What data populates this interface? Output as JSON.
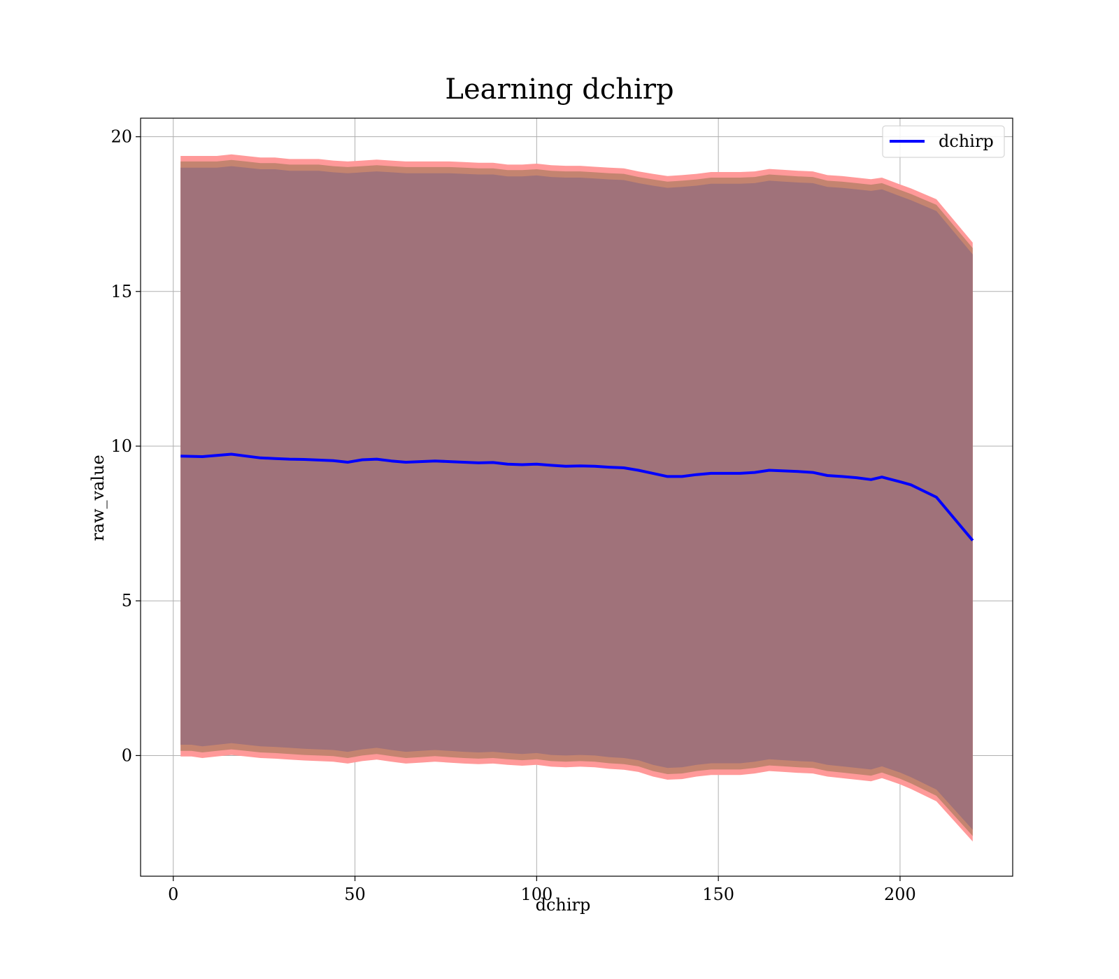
{
  "chart_data": {
    "type": "line",
    "title": "Learning dchirp",
    "xlabel": "dchirp",
    "ylabel": "raw_value",
    "xlim": [
      -9,
      231
    ],
    "ylim": [
      -3.9,
      20.6
    ],
    "xticks": [
      0,
      50,
      100,
      150,
      200
    ],
    "yticks": [
      0,
      5,
      10,
      15,
      20
    ],
    "grid": true,
    "legend": {
      "position": "upper right",
      "entries": [
        "dchirp"
      ]
    },
    "colors": {
      "line": "#0000ff",
      "band_outer": "#ff9999",
      "band_middle": "#c48470",
      "band_inner": "#a0727a",
      "grid": "#b0b0b0"
    },
    "series": [
      {
        "name": "dchirp",
        "x": [
          2,
          5,
          8,
          12,
          16,
          20,
          24,
          28,
          32,
          36,
          40,
          44,
          48,
          52,
          56,
          60,
          64,
          68,
          72,
          76,
          80,
          84,
          88,
          92,
          96,
          100,
          104,
          108,
          112,
          116,
          120,
          124,
          128,
          132,
          136,
          140,
          144,
          148,
          152,
          156,
          160,
          164,
          168,
          172,
          176,
          180,
          184,
          188,
          192,
          195,
          200,
          203,
          210,
          220
        ],
        "y": [
          9.68,
          9.67,
          9.66,
          9.7,
          9.74,
          9.68,
          9.62,
          9.6,
          9.58,
          9.57,
          9.55,
          9.53,
          9.48,
          9.56,
          9.58,
          9.52,
          9.48,
          9.5,
          9.52,
          9.5,
          9.48,
          9.46,
          9.47,
          9.42,
          9.4,
          9.42,
          9.38,
          9.35,
          9.36,
          9.35,
          9.32,
          9.3,
          9.22,
          9.12,
          9.02,
          9.02,
          9.08,
          9.12,
          9.12,
          9.12,
          9.15,
          9.22,
          9.2,
          9.18,
          9.15,
          9.05,
          9.02,
          8.98,
          8.92,
          9.0,
          8.85,
          8.75,
          8.35,
          6.95
        ],
        "inner_band": {
          "upper": [
            19.0,
            19.0,
            19.0,
            19.0,
            19.05,
            19.0,
            18.95,
            18.95,
            18.9,
            18.9,
            18.9,
            18.85,
            18.82,
            18.85,
            18.88,
            18.85,
            18.82,
            18.82,
            18.82,
            18.82,
            18.8,
            18.78,
            18.78,
            18.72,
            18.72,
            18.75,
            18.7,
            18.68,
            18.68,
            18.65,
            18.62,
            18.6,
            18.5,
            18.42,
            18.35,
            18.38,
            18.42,
            18.48,
            18.48,
            18.48,
            18.5,
            18.58,
            18.55,
            18.52,
            18.5,
            18.38,
            18.35,
            18.3,
            18.25,
            18.3,
            18.08,
            17.95,
            17.6,
            16.2
          ],
          "lower": [
            0.35,
            0.35,
            0.3,
            0.35,
            0.4,
            0.35,
            0.3,
            0.28,
            0.25,
            0.22,
            0.2,
            0.18,
            0.12,
            0.2,
            0.25,
            0.18,
            0.12,
            0.15,
            0.18,
            0.15,
            0.12,
            0.1,
            0.12,
            0.08,
            0.05,
            0.08,
            0.02,
            0.0,
            0.02,
            0.0,
            -0.05,
            -0.08,
            -0.15,
            -0.3,
            -0.4,
            -0.38,
            -0.3,
            -0.25,
            -0.25,
            -0.25,
            -0.2,
            -0.12,
            -0.15,
            -0.18,
            -0.2,
            -0.3,
            -0.35,
            -0.4,
            -0.45,
            -0.35,
            -0.55,
            -0.7,
            -1.1,
            -2.4
          ]
        },
        "middle_band": {
          "upper": [
            19.2,
            19.2,
            19.2,
            19.2,
            19.25,
            19.2,
            19.15,
            19.15,
            19.1,
            19.1,
            19.1,
            19.05,
            19.02,
            19.05,
            19.08,
            19.05,
            19.02,
            19.02,
            19.02,
            19.02,
            19.0,
            18.98,
            18.98,
            18.92,
            18.92,
            18.95,
            18.9,
            18.88,
            18.88,
            18.85,
            18.82,
            18.8,
            18.7,
            18.62,
            18.55,
            18.58,
            18.62,
            18.68,
            18.68,
            18.68,
            18.7,
            18.78,
            18.75,
            18.72,
            18.7,
            18.58,
            18.55,
            18.5,
            18.45,
            18.5,
            18.28,
            18.15,
            17.8,
            16.4
          ],
          "lower": [
            0.15,
            0.15,
            0.1,
            0.15,
            0.2,
            0.15,
            0.1,
            0.08,
            0.05,
            0.02,
            0.0,
            -0.02,
            -0.08,
            0.0,
            0.05,
            -0.02,
            -0.08,
            -0.05,
            -0.02,
            -0.05,
            -0.08,
            -0.1,
            -0.08,
            -0.12,
            -0.15,
            -0.12,
            -0.18,
            -0.2,
            -0.18,
            -0.2,
            -0.25,
            -0.28,
            -0.35,
            -0.5,
            -0.6,
            -0.58,
            -0.5,
            -0.45,
            -0.45,
            -0.45,
            -0.4,
            -0.32,
            -0.35,
            -0.38,
            -0.4,
            -0.5,
            -0.55,
            -0.6,
            -0.65,
            -0.55,
            -0.75,
            -0.9,
            -1.3,
            -2.6
          ]
        },
        "outer_band": {
          "upper": [
            19.38,
            19.38,
            19.38,
            19.38,
            19.43,
            19.38,
            19.33,
            19.33,
            19.28,
            19.28,
            19.28,
            19.23,
            19.2,
            19.23,
            19.26,
            19.23,
            19.2,
            19.2,
            19.2,
            19.2,
            19.18,
            19.16,
            19.16,
            19.1,
            19.1,
            19.13,
            19.08,
            19.06,
            19.06,
            19.03,
            19.0,
            18.98,
            18.88,
            18.8,
            18.73,
            18.76,
            18.8,
            18.86,
            18.86,
            18.86,
            18.88,
            18.96,
            18.93,
            18.9,
            18.88,
            18.76,
            18.73,
            18.68,
            18.63,
            18.68,
            18.46,
            18.33,
            17.98,
            16.58
          ],
          "lower": [
            -0.03,
            -0.03,
            -0.08,
            -0.03,
            0.02,
            -0.03,
            -0.08,
            -0.1,
            -0.13,
            -0.16,
            -0.18,
            -0.2,
            -0.26,
            -0.18,
            -0.13,
            -0.2,
            -0.26,
            -0.23,
            -0.2,
            -0.23,
            -0.26,
            -0.28,
            -0.26,
            -0.3,
            -0.33,
            -0.3,
            -0.36,
            -0.38,
            -0.36,
            -0.38,
            -0.43,
            -0.46,
            -0.53,
            -0.68,
            -0.78,
            -0.76,
            -0.68,
            -0.63,
            -0.63,
            -0.63,
            -0.58,
            -0.5,
            -0.53,
            -0.56,
            -0.58,
            -0.68,
            -0.73,
            -0.78,
            -0.83,
            -0.73,
            -0.93,
            -1.08,
            -1.48,
            -2.78
          ]
        }
      }
    ]
  }
}
